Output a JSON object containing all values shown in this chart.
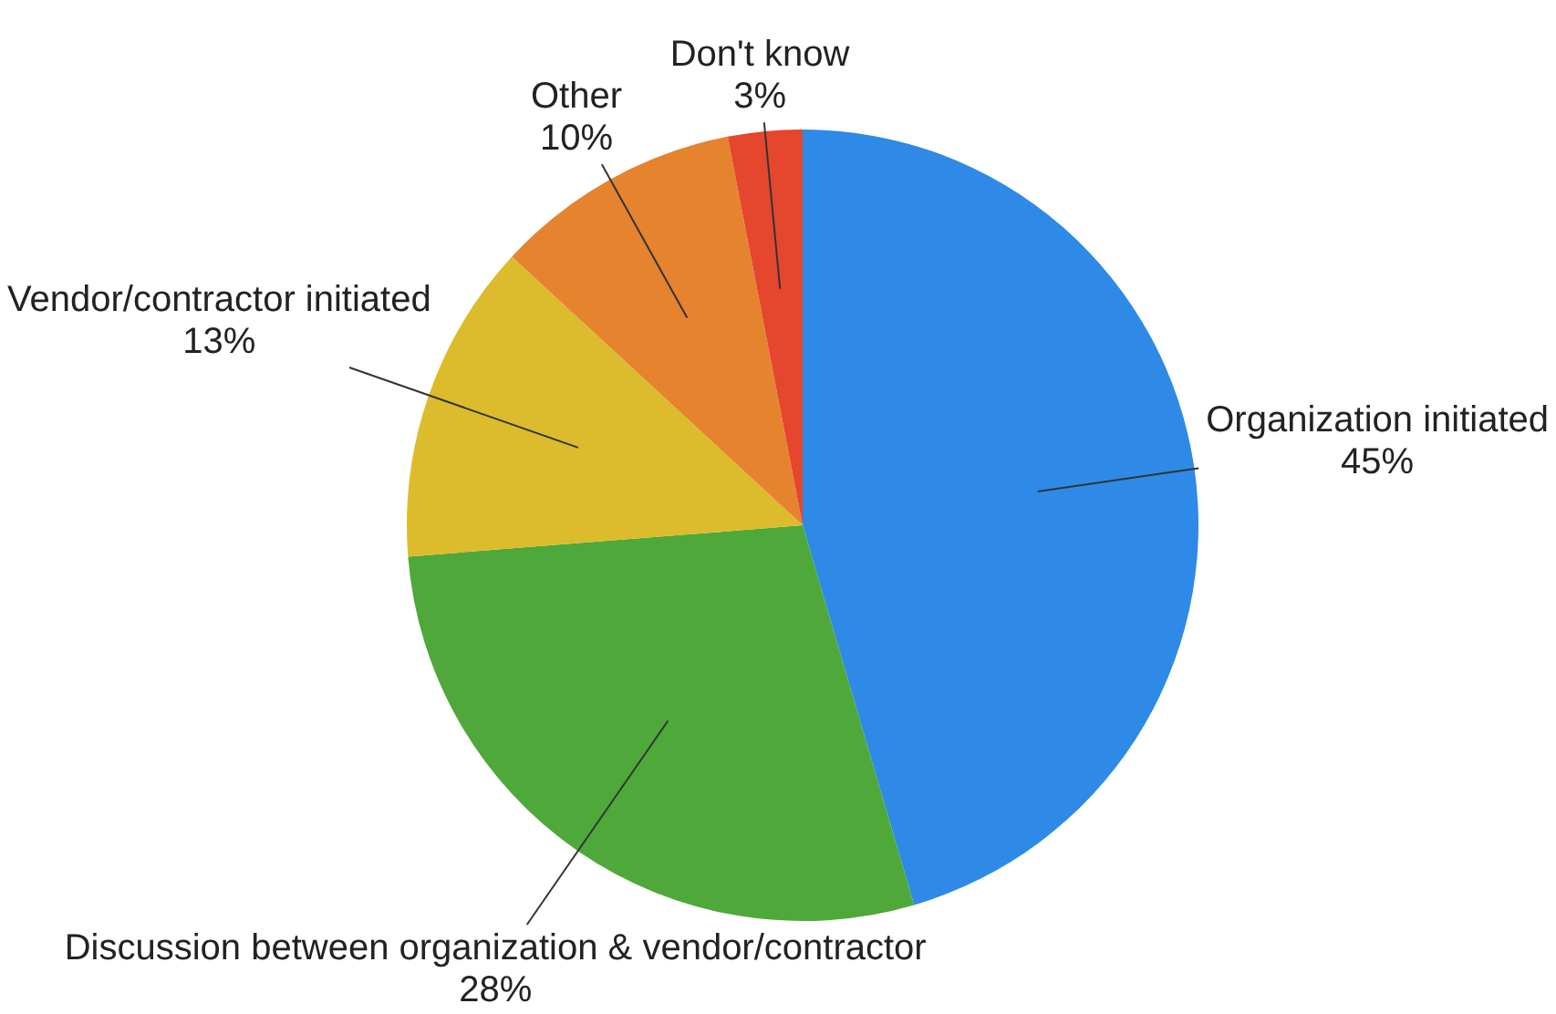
{
  "chart_data": {
    "type": "pie",
    "categories": [
      "Organization initiated",
      "Discussion between organization & vendor/contractor",
      "Vendor/contractor initiated",
      "Other",
      "Don't know"
    ],
    "values": [
      45,
      28,
      13,
      10,
      3
    ],
    "value_labels": [
      "45%",
      "28%",
      "13%",
      "10%",
      "3%"
    ],
    "colors": [
      "#2e8ae6",
      "#4fa83a",
      "#dcbc2c",
      "#e6832e",
      "#e4462e"
    ]
  }
}
